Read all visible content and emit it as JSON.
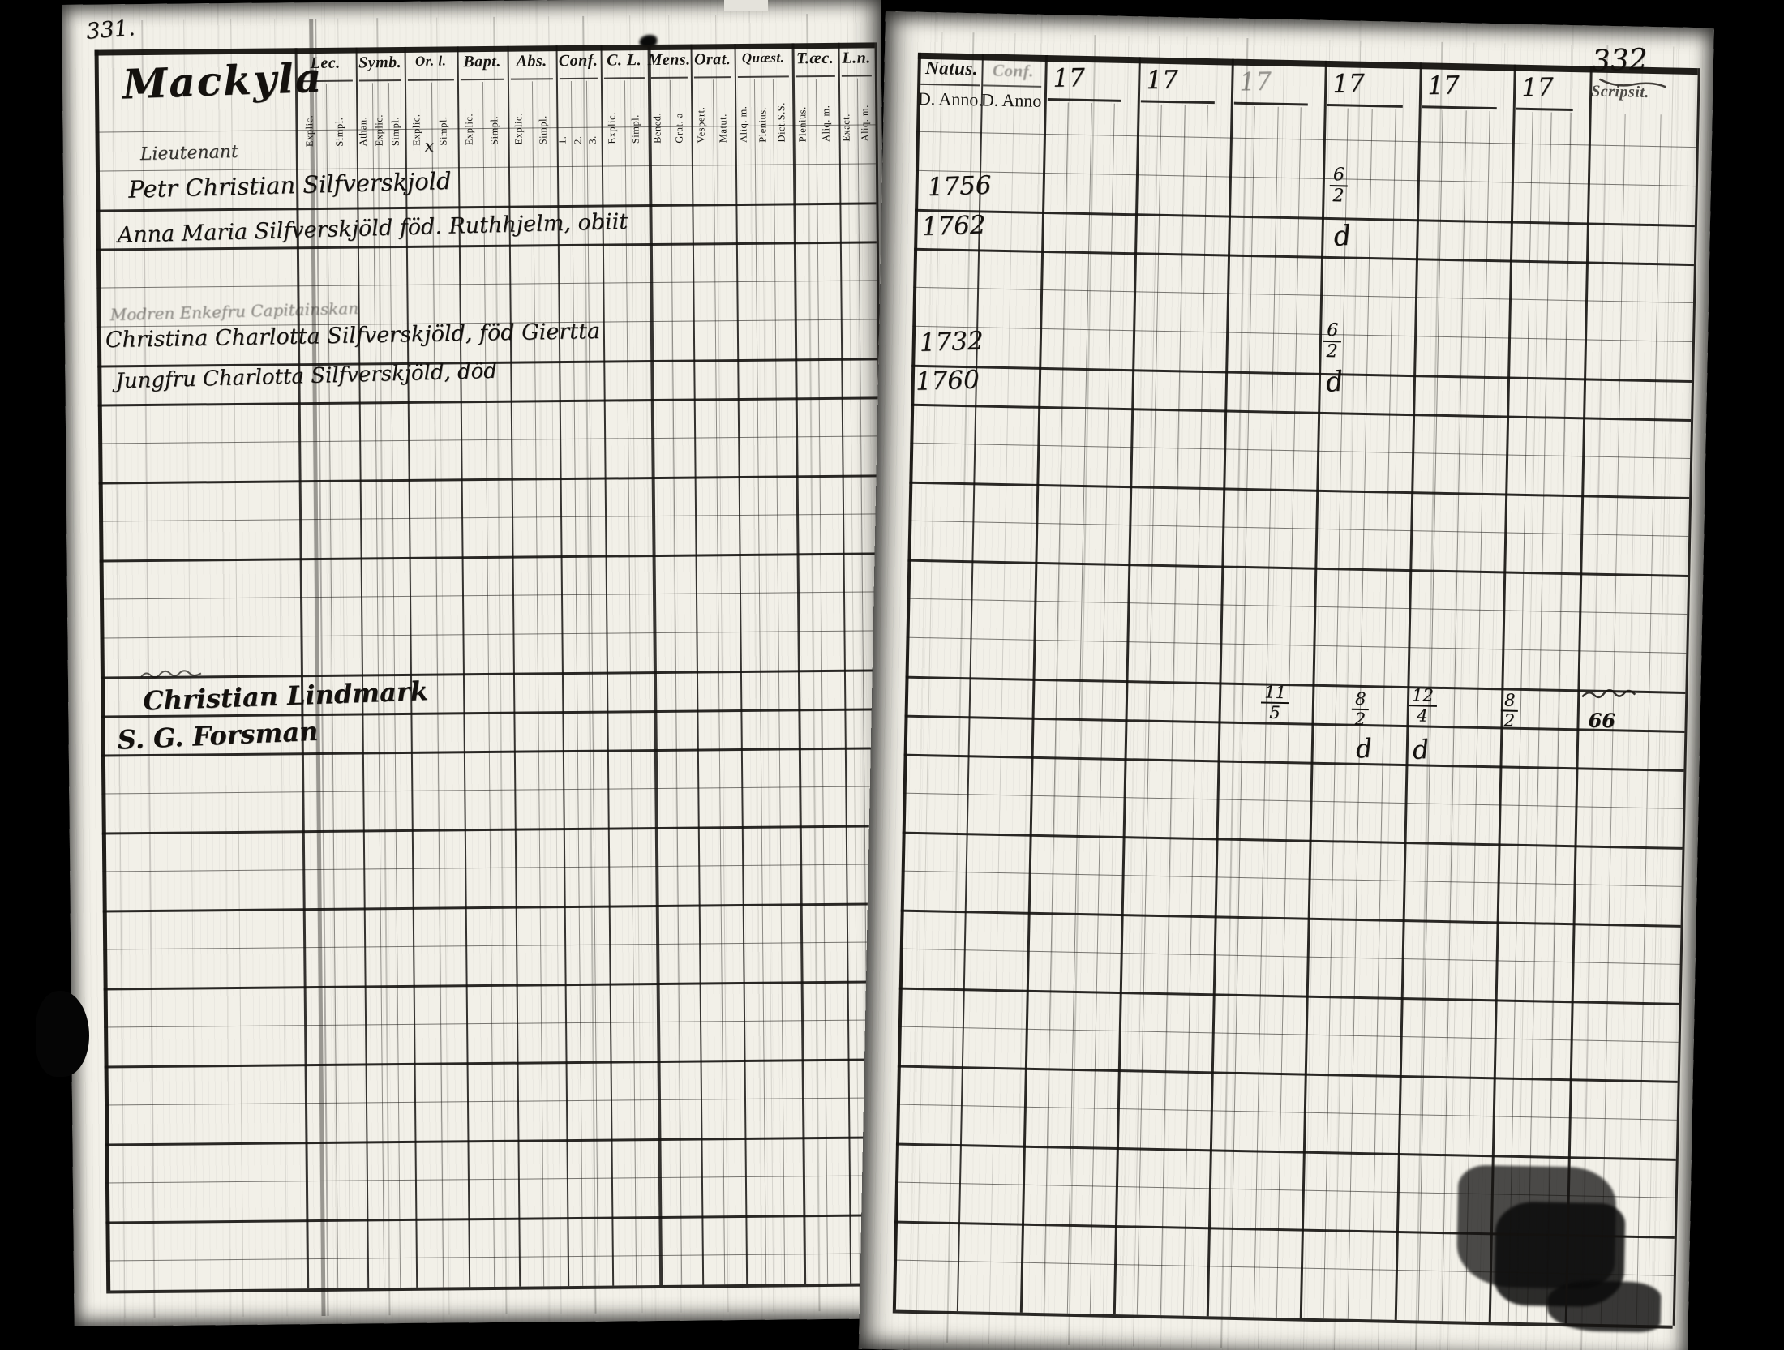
{
  "left_page": {
    "page_number": "331.",
    "title": "Mackyla",
    "columns": [
      {
        "label": "Lec.",
        "subs": [
          "Explic.",
          "Simpl."
        ]
      },
      {
        "label": "Symb.",
        "subs": [
          "Athan.",
          "Explic.",
          "Simpl."
        ]
      },
      {
        "label": "Or. l.",
        "subs": [
          "Explic.",
          "Simpl."
        ]
      },
      {
        "label": "Bapt.",
        "subs": [
          "Explic.",
          "Simpl."
        ]
      },
      {
        "label": "Abs.",
        "subs": [
          "Explic.",
          "Simpl."
        ]
      },
      {
        "label": "Conf.",
        "subs": [
          "1.",
          "2.",
          "3."
        ]
      },
      {
        "label": "C. L.",
        "subs": [
          "Explic.",
          "Simpl."
        ]
      },
      {
        "label": "Mens.",
        "subs": [
          "Bened.",
          "Grat. a"
        ]
      },
      {
        "label": "Orat.",
        "subs": [
          "Vespert.",
          "Matut."
        ]
      },
      {
        "label": "Quæst.",
        "subs": [
          "Aliq. m.",
          "Plenius.",
          "Dict.S.S."
        ]
      },
      {
        "label": "T.æc.",
        "subs": [
          "Plenius.",
          "Aliq. m."
        ]
      },
      {
        "label": "L.n.",
        "subs": [
          "Exact.",
          "Aliq. m."
        ]
      }
    ],
    "entries": [
      {
        "text": "Lieutenant"
      },
      {
        "text": "Petr Christian Silfverskjold"
      },
      {
        "text": "Anna Maria Silfverskjöld föd. Ruthhjelm, obiit"
      },
      {
        "text": "Modren Enkefru Capitainskan"
      },
      {
        "text": "Christina Charlotta Silfverskjöld, föd Giertta"
      },
      {
        "text": "Jungfru Charlotta Silfverskjöld, död"
      }
    ],
    "entry_mark": "x",
    "signatures": [
      "Christian Lindmark",
      "S. G. Forsman"
    ]
  },
  "right_page": {
    "page_number": "332",
    "header": {
      "natus_label": "Natus.",
      "natus_sub": "D. Anno.",
      "conf_label": "Conf.",
      "conf_sub": "D. Anno",
      "year_prefixes": [
        "17",
        "17",
        "17",
        "17",
        "17",
        "17"
      ],
      "last_label": "Scripsit."
    },
    "birth_years": [
      "1756",
      "1762",
      "1732",
      "1760"
    ],
    "communion_marks": [
      {
        "type": "frac",
        "num": "6",
        "den": "2"
      },
      {
        "type": "ditto",
        "text": "d"
      },
      {
        "type": "frac",
        "num": "6",
        "den": "2"
      },
      {
        "type": "ditto",
        "text": "d"
      }
    ],
    "annotations": {
      "fractions": [
        {
          "num": "11",
          "den": "5"
        },
        {
          "num": "8",
          "den": "2"
        },
        {
          "num": "12",
          "den": "4"
        },
        {
          "num": "8",
          "den": "2"
        }
      ],
      "number": "66",
      "dittos": [
        "d",
        "d"
      ]
    }
  }
}
